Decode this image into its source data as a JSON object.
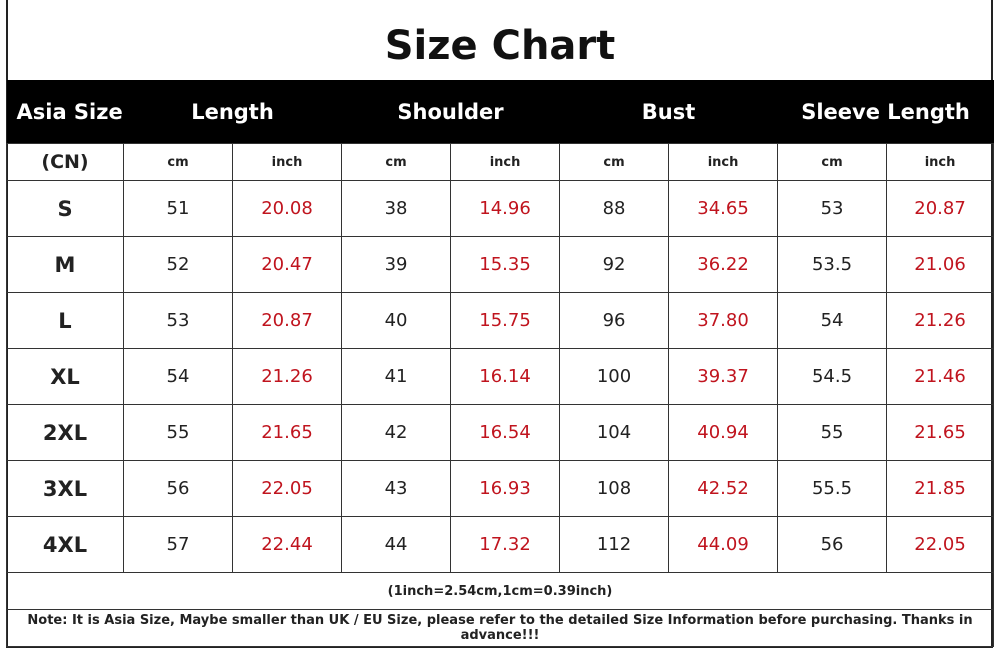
{
  "title": "Size Chart",
  "headers": [
    "Asia Size",
    "Length",
    "Shoulder",
    "Bust",
    "Sleeve Length"
  ],
  "subheaders": [
    "(CN)",
    "cm",
    "inch",
    "cm",
    "inch",
    "cm",
    "inch",
    "cm",
    "inch"
  ],
  "colors": {
    "header_bg": "#000000",
    "inch_text": "#c0141e"
  },
  "rows": [
    [
      "S",
      "51",
      "20.08",
      "38",
      "14.96",
      "88",
      "34.65",
      "53",
      "20.87"
    ],
    [
      "M",
      "52",
      "20.47",
      "39",
      "15.35",
      "92",
      "36.22",
      "53.5",
      "21.06"
    ],
    [
      "L",
      "53",
      "20.87",
      "40",
      "15.75",
      "96",
      "37.80",
      "54",
      "21.26"
    ],
    [
      "XL",
      "54",
      "21.26",
      "41",
      "16.14",
      "100",
      "39.37",
      "54.5",
      "21.46"
    ],
    [
      "2XL",
      "55",
      "21.65",
      "42",
      "16.54",
      "104",
      "40.94",
      "55",
      "21.65"
    ],
    [
      "3XL",
      "56",
      "22.05",
      "43",
      "16.93",
      "108",
      "42.52",
      "55.5",
      "21.85"
    ],
    [
      "4XL",
      "57",
      "22.44",
      "44",
      "17.32",
      "112",
      "44.09",
      "56",
      "22.05"
    ]
  ],
  "conversion": "(1inch=2.54cm,1cm=0.39inch)",
  "note": "Note: It is Asia Size, Maybe smaller than UK / EU Size, please refer to the detailed Size Information before purchasing. Thanks in advance!!!"
}
